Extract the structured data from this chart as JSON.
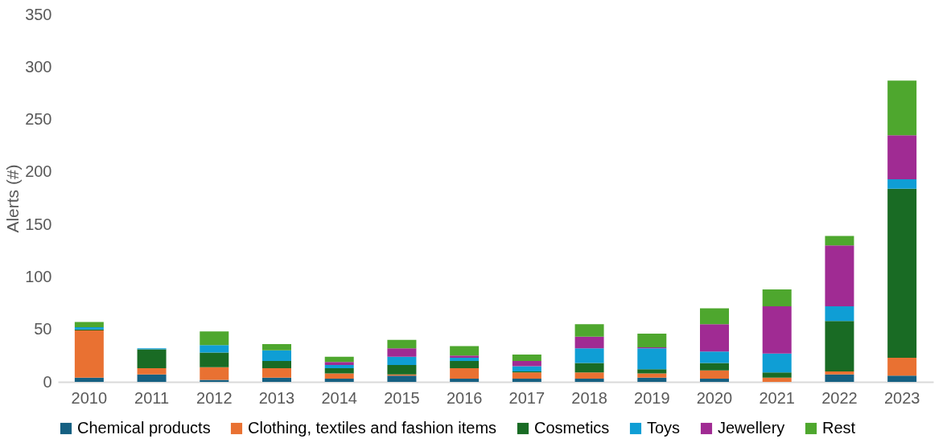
{
  "chart_data": {
    "type": "bar",
    "stacked": true,
    "ylabel": "Alerts (#)",
    "categories": [
      "2010",
      "2011",
      "2012",
      "2013",
      "2014",
      "2015",
      "2016",
      "2017",
      "2018",
      "2019",
      "2020",
      "2021",
      "2022",
      "2023"
    ],
    "series": [
      {
        "name": "Chemical products",
        "color": "#156082",
        "values": [
          4,
          7,
          2,
          4,
          3,
          6,
          3,
          3,
          3,
          4,
          3,
          0,
          7,
          6
        ]
      },
      {
        "name": "Clothing, textiles and fashion items",
        "color": "#e97132",
        "values": [
          45,
          6,
          12,
          9,
          5,
          1,
          10,
          6,
          6,
          4,
          8,
          4,
          3,
          17
        ]
      },
      {
        "name": "Cosmetics",
        "color": "#196b24",
        "values": [
          1,
          18,
          14,
          7,
          5,
          9,
          7,
          1,
          9,
          4,
          7,
          5,
          48,
          161
        ]
      },
      {
        "name": "Toys",
        "color": "#0f9ed5",
        "values": [
          2,
          1,
          7,
          10,
          3,
          8,
          3,
          5,
          14,
          20,
          11,
          18,
          14,
          9
        ]
      },
      {
        "name": "Jewellery",
        "color": "#a02b93",
        "values": [
          0,
          0,
          0,
          0,
          3,
          8,
          2,
          5,
          11,
          1,
          26,
          45,
          58,
          42
        ]
      },
      {
        "name": "Rest",
        "color": "#4ea72e",
        "values": [
          5,
          0,
          13,
          6,
          5,
          8,
          9,
          6,
          12,
          13,
          15,
          16,
          9,
          52
        ]
      }
    ],
    "ylim": [
      0,
      350
    ],
    "yticks": [
      0,
      50,
      100,
      150,
      200,
      250,
      300,
      350
    ],
    "grid": false,
    "legend": "bottom"
  }
}
